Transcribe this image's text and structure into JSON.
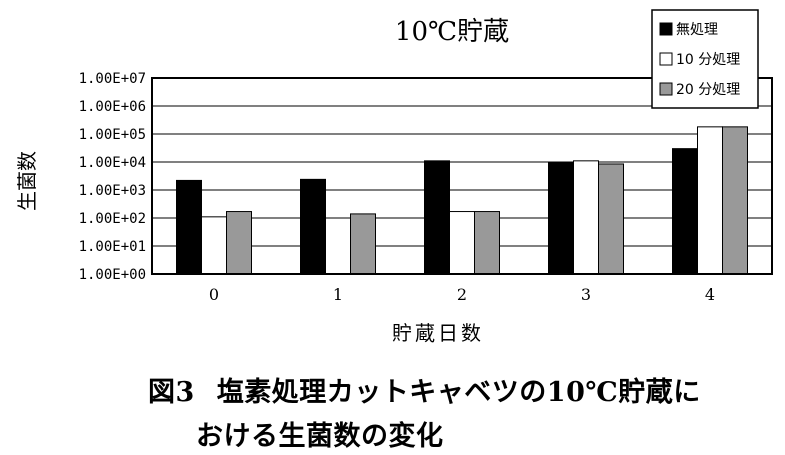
{
  "chart_data": {
    "type": "bar",
    "title": "10℃貯蔵",
    "xlabel": "貯蔵日数",
    "ylabel": "生菌数",
    "yscale": "log",
    "ylim": [
      1,
      10000000
    ],
    "yticks": [
      1,
      10,
      100,
      1000,
      10000,
      100000,
      1000000,
      10000000
    ],
    "ytick_labels": [
      "1.00E+00",
      "1.00E+01",
      "1.00E+02",
      "1.00E+03",
      "1.00E+04",
      "1.00E+05",
      "1.00E+06",
      "1.00E+07"
    ],
    "categories": [
      "0",
      "1",
      "2",
      "3",
      "4"
    ],
    "series": [
      {
        "name": "無処理",
        "color": "#000000",
        "values": [
          2200,
          2400,
          11000,
          9500,
          30000
        ]
      },
      {
        "name": "10 分処理",
        "color": "#ffffff",
        "values": [
          110,
          100,
          170,
          11000,
          180000
        ]
      },
      {
        "name": "20 分処理",
        "color": "#999999",
        "values": [
          170,
          140,
          170,
          8500,
          180000
        ]
      }
    ],
    "grid": true,
    "legend": "top-right"
  },
  "caption": {
    "figure_number": "図3",
    "line1": "塩素処理カットキャベツの10℃貯蔵に",
    "line2": "おける生菌数の変化"
  }
}
